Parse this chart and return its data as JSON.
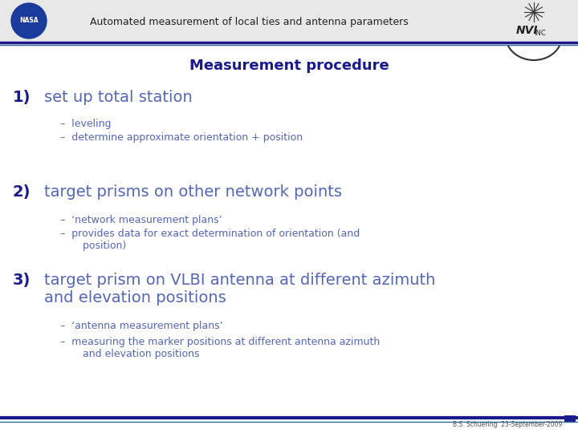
{
  "header_text": "Automated measurement of local ties and antenna parameters",
  "header_bg": "#e8e8e8",
  "header_color": "#222222",
  "slide_bg": "#ffffff",
  "title": "Measurement procedure",
  "title_color": "#1a1a8c",
  "title_fontsize": 13,
  "items": [
    {
      "number": "1)",
      "number_color": "#1a1a8c",
      "number_fontsize": 14,
      "text": "set up total station",
      "text_color": "#5566bb",
      "text_fontsize": 14,
      "subitems": [
        "–  leveling",
        "–  determine approximate orientation + position"
      ],
      "subitem_color": "#5566bb",
      "subitem_fontsize": 9
    },
    {
      "number": "2)",
      "number_color": "#1a1a8c",
      "number_fontsize": 14,
      "text": "target prisms on other network points",
      "text_color": "#5566bb",
      "text_fontsize": 14,
      "subitems": [
        "–  ‘network measurement plans’",
        "–  provides data for exact determination of orientation (and\n       position)"
      ],
      "subitem_color": "#5566bb",
      "subitem_fontsize": 9
    },
    {
      "number": "3)",
      "number_color": "#1a1a8c",
      "number_fontsize": 14,
      "text": "target prism on VLBI antenna at different azimuth\nand elevation positions",
      "text_color": "#5566bb",
      "text_fontsize": 14,
      "subitems": [
        "–  ‘antenna measurement plans’",
        "–  measuring the marker positions at different antenna azimuth\n       and elevation positions"
      ],
      "subitem_color": "#5566bb",
      "subitem_fontsize": 9
    }
  ],
  "footer_text": "B.S. Schuering  23-September-2009",
  "footer_color": "#555555",
  "footer_fontsize": 5.5,
  "line_color_thick": "#1a1a8c",
  "line_color_thin": "#336699",
  "header_line_color": "#1a1a8c"
}
